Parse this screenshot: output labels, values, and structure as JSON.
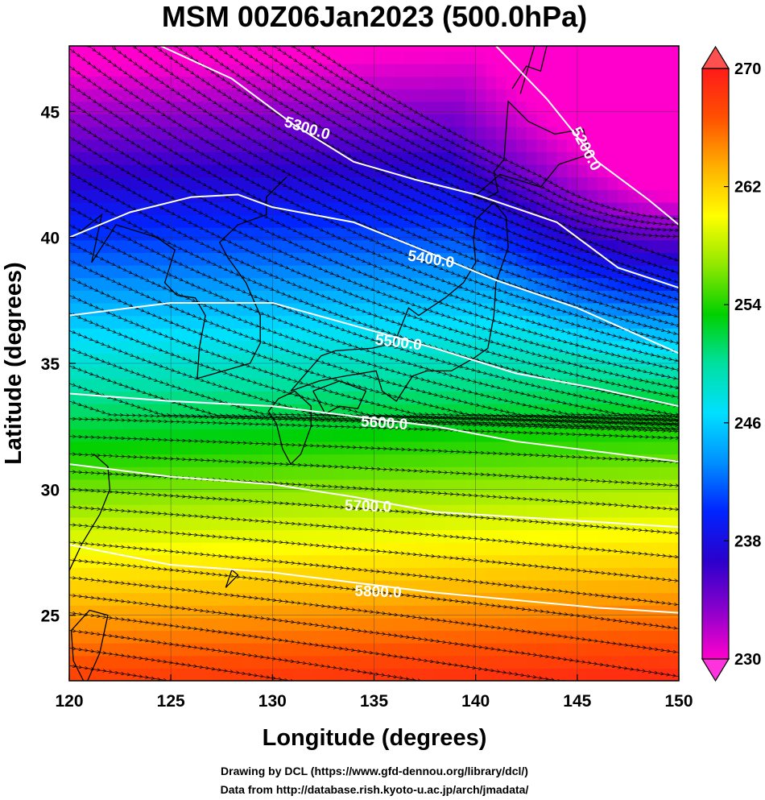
{
  "title": "MSM 00Z06Jan2023 (500.0hPa)",
  "xlabel": "Longitude (degrees)",
  "ylabel": "Latitude  (degrees)",
  "credits": [
    "Drawing by DCL (https://www.gfd-dennou.org/library/dcl/)",
    "Data from http://database.rish.kyoto-u.ac.jp/arch/jmadata/"
  ],
  "chart_data": {
    "type": "heatmap",
    "variable": "temperature shading with height contours and wind streamlines",
    "xlim": [
      120,
      150
    ],
    "ylim": [
      22.4,
      47.6
    ],
    "x_ticks": [
      "120",
      "125",
      "130",
      "135",
      "140",
      "145",
      "150"
    ],
    "y_ticks": [
      "25",
      "30",
      "35",
      "40",
      "45"
    ],
    "colorbar": {
      "min": 230,
      "max": 270,
      "ticks": [
        "230",
        "238",
        "246",
        "254",
        "262",
        "270"
      ],
      "colors": [
        "#ff00cc",
        "#8a00cc",
        "#2b00cc",
        "#0024ff",
        "#0090ff",
        "#00e0ff",
        "#00e0a0",
        "#00d000",
        "#90e800",
        "#ffff00",
        "#ffb000",
        "#ff5000",
        "#ff1a1a"
      ]
    },
    "contours": [
      {
        "label": "5200.0",
        "lon": 145.4,
        "lat": 43.5,
        "angle": 62
      },
      {
        "label": "5300.0",
        "lon": 131.7,
        "lat": 44.3,
        "angle": 17
      },
      {
        "label": "5400.0",
        "lon": 137.8,
        "lat": 39.1,
        "angle": 9
      },
      {
        "label": "5500.0",
        "lon": 136.2,
        "lat": 35.8,
        "angle": 7
      },
      {
        "label": "5600.0",
        "lon": 135.5,
        "lat": 32.6,
        "angle": 4
      },
      {
        "label": "5700.0",
        "lon": 134.7,
        "lat": 29.3,
        "angle": 2
      },
      {
        "label": "5800.0",
        "lon": 135.2,
        "lat": 25.9,
        "angle": 2
      }
    ]
  }
}
